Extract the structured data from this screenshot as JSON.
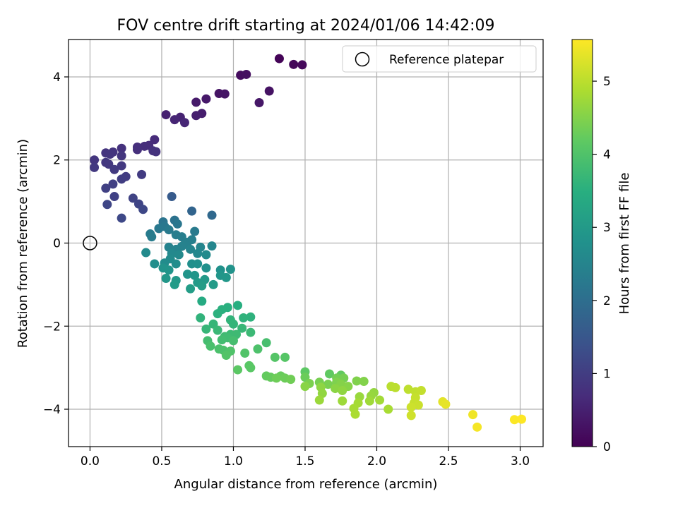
{
  "chart_data": {
    "type": "scatter",
    "title": "FOV centre drift starting at 2024/01/06 14:42:09",
    "xlabel": "Angular distance from reference (arcmin)",
    "ylabel": "Rotation from reference (arcmin)",
    "xlim": [
      -0.15,
      3.16
    ],
    "ylim": [
      -4.9,
      4.9
    ],
    "xticks": [
      0.0,
      0.5,
      1.0,
      1.5,
      2.0,
      2.5,
      3.0
    ],
    "xtick_labels": [
      "0.0",
      "0.5",
      "1.0",
      "1.5",
      "2.0",
      "2.5",
      "3.0"
    ],
    "yticks": [
      -4,
      -2,
      0,
      2,
      4
    ],
    "ytick_labels": [
      "−4",
      "−2",
      "0",
      "2",
      "4"
    ],
    "grid": true,
    "colormap": "viridis",
    "legend": {
      "placement": "top-right",
      "label": "Reference platepar"
    },
    "reference_point": {
      "x": 0.0,
      "y": 0.0
    },
    "colorbar": {
      "label": "Hours from first FF file",
      "range": [
        0,
        5.57
      ],
      "ticks": [
        0,
        1,
        2,
        3,
        4,
        5
      ],
      "tick_labels": [
        "0",
        "1",
        "2",
        "3",
        "4",
        "5"
      ]
    },
    "series": [
      {
        "points": [
          {
            "x": 1.32,
            "y": 4.44,
            "c": 0.05
          },
          {
            "x": 1.42,
            "y": 4.3,
            "c": 0.1
          },
          {
            "x": 1.48,
            "y": 4.29,
            "c": 0.12
          },
          {
            "x": 1.05,
            "y": 4.04,
            "c": 0.2
          },
          {
            "x": 1.09,
            "y": 4.06,
            "c": 0.22
          },
          {
            "x": 1.25,
            "y": 3.66,
            "c": 0.28
          },
          {
            "x": 0.9,
            "y": 3.6,
            "c": 0.3
          },
          {
            "x": 0.94,
            "y": 3.59,
            "c": 0.32
          },
          {
            "x": 1.18,
            "y": 3.38,
            "c": 0.35
          },
          {
            "x": 0.81,
            "y": 3.47,
            "c": 0.38
          },
          {
            "x": 0.74,
            "y": 3.39,
            "c": 0.4
          },
          {
            "x": 0.78,
            "y": 3.12,
            "c": 0.45
          },
          {
            "x": 0.74,
            "y": 3.07,
            "c": 0.48
          },
          {
            "x": 0.53,
            "y": 3.09,
            "c": 0.52
          },
          {
            "x": 0.63,
            "y": 3.03,
            "c": 0.55
          },
          {
            "x": 0.59,
            "y": 2.97,
            "c": 0.58
          },
          {
            "x": 0.66,
            "y": 2.9,
            "c": 0.62
          },
          {
            "x": 0.45,
            "y": 2.49,
            "c": 0.7
          },
          {
            "x": 0.41,
            "y": 2.35,
            "c": 0.72
          },
          {
            "x": 0.38,
            "y": 2.33,
            "c": 0.74
          },
          {
            "x": 0.33,
            "y": 2.31,
            "c": 0.76
          },
          {
            "x": 0.33,
            "y": 2.25,
            "c": 0.78
          },
          {
            "x": 0.22,
            "y": 2.28,
            "c": 0.8
          },
          {
            "x": 0.44,
            "y": 2.22,
            "c": 0.8
          },
          {
            "x": 0.46,
            "y": 2.2,
            "c": 0.82
          },
          {
            "x": 0.16,
            "y": 2.19,
            "c": 0.84
          },
          {
            "x": 0.11,
            "y": 2.17,
            "c": 0.85
          },
          {
            "x": 0.14,
            "y": 2.14,
            "c": 0.86
          },
          {
            "x": 0.22,
            "y": 2.1,
            "c": 0.88
          },
          {
            "x": 0.03,
            "y": 2.0,
            "c": 0.88
          },
          {
            "x": 0.11,
            "y": 1.94,
            "c": 0.9
          },
          {
            "x": 0.13,
            "y": 1.9,
            "c": 0.92
          },
          {
            "x": 0.22,
            "y": 1.86,
            "c": 0.94
          },
          {
            "x": 0.03,
            "y": 1.82,
            "c": 0.95
          },
          {
            "x": 0.17,
            "y": 1.77,
            "c": 0.96
          },
          {
            "x": 0.36,
            "y": 1.65,
            "c": 0.98
          },
          {
            "x": 0.25,
            "y": 1.6,
            "c": 1.0
          },
          {
            "x": 0.22,
            "y": 1.54,
            "c": 1.02
          },
          {
            "x": 0.16,
            "y": 1.42,
            "c": 1.05
          },
          {
            "x": 0.11,
            "y": 1.32,
            "c": 1.08
          },
          {
            "x": 0.17,
            "y": 1.12,
            "c": 1.1
          },
          {
            "x": 0.3,
            "y": 1.08,
            "c": 1.12
          },
          {
            "x": 0.34,
            "y": 0.94,
            "c": 1.15
          },
          {
            "x": 0.12,
            "y": 0.93,
            "c": 1.18
          },
          {
            "x": 0.37,
            "y": 0.81,
            "c": 1.2
          },
          {
            "x": 0.22,
            "y": 0.6,
            "c": 1.22
          },
          {
            "x": 0.57,
            "y": 1.12,
            "c": 1.6
          },
          {
            "x": 0.71,
            "y": 0.77,
            "c": 1.8
          },
          {
            "x": 0.85,
            "y": 0.67,
            "c": 1.9
          },
          {
            "x": 0.59,
            "y": 0.55,
            "c": 2.1
          },
          {
            "x": 0.51,
            "y": 0.51,
            "c": 2.15
          },
          {
            "x": 0.61,
            "y": 0.46,
            "c": 2.2
          },
          {
            "x": 0.52,
            "y": 0.4,
            "c": 2.22
          },
          {
            "x": 0.48,
            "y": 0.35,
            "c": 2.25
          },
          {
            "x": 0.55,
            "y": 0.32,
            "c": 2.28
          },
          {
            "x": 0.73,
            "y": 0.28,
            "c": 2.3
          },
          {
            "x": 0.42,
            "y": 0.22,
            "c": 2.32
          },
          {
            "x": 0.43,
            "y": 0.15,
            "c": 2.34
          },
          {
            "x": 0.6,
            "y": 0.2,
            "c": 2.35
          },
          {
            "x": 0.64,
            "y": 0.15,
            "c": 2.37
          },
          {
            "x": 0.71,
            "y": 0.08,
            "c": 2.4
          },
          {
            "x": 0.68,
            "y": 0.02,
            "c": 2.42
          },
          {
            "x": 0.66,
            "y": -0.03,
            "c": 2.44
          },
          {
            "x": 0.64,
            "y": -0.08,
            "c": 2.46
          },
          {
            "x": 0.55,
            "y": -0.1,
            "c": 2.48
          },
          {
            "x": 0.6,
            "y": -0.15,
            "c": 2.5
          },
          {
            "x": 0.7,
            "y": -0.15,
            "c": 2.52
          },
          {
            "x": 0.77,
            "y": -0.1,
            "c": 2.54
          },
          {
            "x": 0.85,
            "y": -0.07,
            "c": 2.55
          },
          {
            "x": 0.75,
            "y": -0.25,
            "c": 2.58
          },
          {
            "x": 0.57,
            "y": -0.25,
            "c": 2.6
          },
          {
            "x": 0.62,
            "y": -0.28,
            "c": 2.62
          },
          {
            "x": 0.39,
            "y": -0.23,
            "c": 2.64
          },
          {
            "x": 0.81,
            "y": -0.28,
            "c": 2.66
          },
          {
            "x": 0.56,
            "y": -0.38,
            "c": 2.68
          },
          {
            "x": 0.52,
            "y": -0.48,
            "c": 2.7
          },
          {
            "x": 0.6,
            "y": -0.5,
            "c": 2.72
          },
          {
            "x": 0.45,
            "y": -0.5,
            "c": 2.74
          },
          {
            "x": 0.71,
            "y": -0.5,
            "c": 2.76
          },
          {
            "x": 0.75,
            "y": -0.5,
            "c": 2.78
          },
          {
            "x": 0.81,
            "y": -0.6,
            "c": 2.8
          },
          {
            "x": 0.91,
            "y": -0.65,
            "c": 2.82
          },
          {
            "x": 0.98,
            "y": -0.63,
            "c": 2.85
          },
          {
            "x": 0.51,
            "y": -0.6,
            "c": 2.86
          },
          {
            "x": 0.55,
            "y": -0.65,
            "c": 2.88
          },
          {
            "x": 0.68,
            "y": -0.75,
            "c": 2.9
          },
          {
            "x": 0.73,
            "y": -0.78,
            "c": 2.92
          },
          {
            "x": 0.91,
            "y": -0.78,
            "c": 2.94
          },
          {
            "x": 0.95,
            "y": -0.83,
            "c": 2.95
          },
          {
            "x": 0.53,
            "y": -0.85,
            "c": 2.96
          },
          {
            "x": 0.6,
            "y": -0.9,
            "c": 2.98
          },
          {
            "x": 0.8,
            "y": -0.88,
            "c": 3.0
          },
          {
            "x": 0.75,
            "y": -0.95,
            "c": 3.02
          },
          {
            "x": 0.59,
            "y": -1.0,
            "c": 3.04
          },
          {
            "x": 0.86,
            "y": -1.0,
            "c": 3.06
          },
          {
            "x": 0.78,
            "y": -1.03,
            "c": 3.08
          },
          {
            "x": 0.7,
            "y": -1.1,
            "c": 3.1
          },
          {
            "x": 0.78,
            "y": -1.4,
            "c": 3.4
          },
          {
            "x": 1.03,
            "y": -1.5,
            "c": 3.5
          },
          {
            "x": 0.96,
            "y": -1.55,
            "c": 3.52
          },
          {
            "x": 0.92,
            "y": -1.6,
            "c": 3.54
          },
          {
            "x": 0.89,
            "y": -1.7,
            "c": 3.56
          },
          {
            "x": 1.12,
            "y": -1.78,
            "c": 3.58
          },
          {
            "x": 1.07,
            "y": -1.8,
            "c": 3.6
          },
          {
            "x": 0.77,
            "y": -1.8,
            "c": 3.62
          },
          {
            "x": 0.98,
            "y": -1.85,
            "c": 3.64
          },
          {
            "x": 1.0,
            "y": -1.95,
            "c": 3.66
          },
          {
            "x": 0.86,
            "y": -1.95,
            "c": 3.68
          },
          {
            "x": 0.81,
            "y": -2.07,
            "c": 3.7
          },
          {
            "x": 1.06,
            "y": -2.05,
            "c": 3.72
          },
          {
            "x": 0.89,
            "y": -2.1,
            "c": 3.74
          },
          {
            "x": 1.12,
            "y": -2.15,
            "c": 3.76
          },
          {
            "x": 0.98,
            "y": -2.2,
            "c": 3.78
          },
          {
            "x": 1.02,
            "y": -2.2,
            "c": 3.8
          },
          {
            "x": 0.94,
            "y": -2.25,
            "c": 3.82
          },
          {
            "x": 0.96,
            "y": -2.28,
            "c": 3.84
          },
          {
            "x": 0.92,
            "y": -2.33,
            "c": 3.86
          },
          {
            "x": 0.82,
            "y": -2.35,
            "c": 3.88
          },
          {
            "x": 1.0,
            "y": -2.35,
            "c": 3.9
          },
          {
            "x": 1.23,
            "y": -2.4,
            "c": 3.92
          },
          {
            "x": 0.84,
            "y": -2.48,
            "c": 3.94
          },
          {
            "x": 0.9,
            "y": -2.55,
            "c": 3.96
          },
          {
            "x": 0.93,
            "y": -2.58,
            "c": 3.98
          },
          {
            "x": 1.17,
            "y": -2.55,
            "c": 4.0
          },
          {
            "x": 0.98,
            "y": -2.6,
            "c": 4.02
          },
          {
            "x": 1.08,
            "y": -2.65,
            "c": 4.04
          },
          {
            "x": 0.95,
            "y": -2.7,
            "c": 4.06
          },
          {
            "x": 1.29,
            "y": -2.75,
            "c": 4.08
          },
          {
            "x": 1.36,
            "y": -2.75,
            "c": 4.1
          },
          {
            "x": 1.11,
            "y": -2.95,
            "c": 4.12
          },
          {
            "x": 1.12,
            "y": -3.0,
            "c": 4.14
          },
          {
            "x": 1.03,
            "y": -3.05,
            "c": 4.16
          },
          {
            "x": 1.5,
            "y": -3.1,
            "c": 4.18
          },
          {
            "x": 1.67,
            "y": -3.15,
            "c": 4.2
          },
          {
            "x": 1.75,
            "y": -3.18,
            "c": 4.22
          },
          {
            "x": 1.23,
            "y": -3.2,
            "c": 4.24
          },
          {
            "x": 1.26,
            "y": -3.23,
            "c": 4.26
          },
          {
            "x": 1.33,
            "y": -3.2,
            "c": 4.28
          },
          {
            "x": 1.5,
            "y": -3.23,
            "c": 4.3
          },
          {
            "x": 1.36,
            "y": -3.25,
            "c": 4.32
          },
          {
            "x": 1.3,
            "y": -3.25,
            "c": 4.34
          },
          {
            "x": 1.4,
            "y": -3.28,
            "c": 4.36
          },
          {
            "x": 1.72,
            "y": -3.25,
            "c": 4.38
          },
          {
            "x": 1.77,
            "y": -3.25,
            "c": 4.4
          },
          {
            "x": 1.6,
            "y": -3.35,
            "c": 4.42
          },
          {
            "x": 1.66,
            "y": -3.4,
            "c": 4.44
          },
          {
            "x": 1.53,
            "y": -3.38,
            "c": 4.46
          },
          {
            "x": 1.72,
            "y": -3.35,
            "c": 4.48
          },
          {
            "x": 1.86,
            "y": -3.32,
            "c": 4.5
          },
          {
            "x": 1.91,
            "y": -3.33,
            "c": 4.52
          },
          {
            "x": 1.75,
            "y": -3.4,
            "c": 4.54
          },
          {
            "x": 1.8,
            "y": -3.45,
            "c": 4.56
          },
          {
            "x": 1.5,
            "y": -3.45,
            "c": 4.58
          },
          {
            "x": 1.71,
            "y": -3.5,
            "c": 4.6
          },
          {
            "x": 1.61,
            "y": -3.47,
            "c": 4.62
          },
          {
            "x": 1.76,
            "y": -3.55,
            "c": 4.64
          },
          {
            "x": 1.62,
            "y": -3.62,
            "c": 4.66
          },
          {
            "x": 1.98,
            "y": -3.6,
            "c": 4.68
          },
          {
            "x": 1.96,
            "y": -3.68,
            "c": 4.7
          },
          {
            "x": 1.88,
            "y": -3.7,
            "c": 4.72
          },
          {
            "x": 1.6,
            "y": -3.78,
            "c": 4.74
          },
          {
            "x": 1.76,
            "y": -3.8,
            "c": 4.76
          },
          {
            "x": 1.95,
            "y": -3.8,
            "c": 4.78
          },
          {
            "x": 2.02,
            "y": -3.78,
            "c": 4.8
          },
          {
            "x": 1.87,
            "y": -3.85,
            "c": 4.82
          },
          {
            "x": 1.84,
            "y": -3.98,
            "c": 4.84
          },
          {
            "x": 2.08,
            "y": -4.0,
            "c": 4.86
          },
          {
            "x": 1.85,
            "y": -4.12,
            "c": 4.88
          },
          {
            "x": 2.1,
            "y": -3.45,
            "c": 5.0
          },
          {
            "x": 2.13,
            "y": -3.48,
            "c": 5.02
          },
          {
            "x": 2.22,
            "y": -3.52,
            "c": 5.04
          },
          {
            "x": 2.27,
            "y": -3.58,
            "c": 5.06
          },
          {
            "x": 2.31,
            "y": -3.55,
            "c": 5.08
          },
          {
            "x": 2.27,
            "y": -3.72,
            "c": 5.1
          },
          {
            "x": 2.26,
            "y": -3.85,
            "c": 5.12
          },
          {
            "x": 2.29,
            "y": -3.9,
            "c": 5.14
          },
          {
            "x": 2.24,
            "y": -3.95,
            "c": 5.16
          },
          {
            "x": 2.24,
            "y": -4.15,
            "c": 5.18
          },
          {
            "x": 2.46,
            "y": -3.82,
            "c": 5.35
          },
          {
            "x": 2.48,
            "y": -3.88,
            "c": 5.38
          },
          {
            "x": 2.67,
            "y": -4.13,
            "c": 5.45
          },
          {
            "x": 2.7,
            "y": -4.43,
            "c": 5.5
          },
          {
            "x": 2.96,
            "y": -4.25,
            "c": 5.55
          },
          {
            "x": 3.01,
            "y": -4.24,
            "c": 5.57
          }
        ]
      }
    ]
  }
}
